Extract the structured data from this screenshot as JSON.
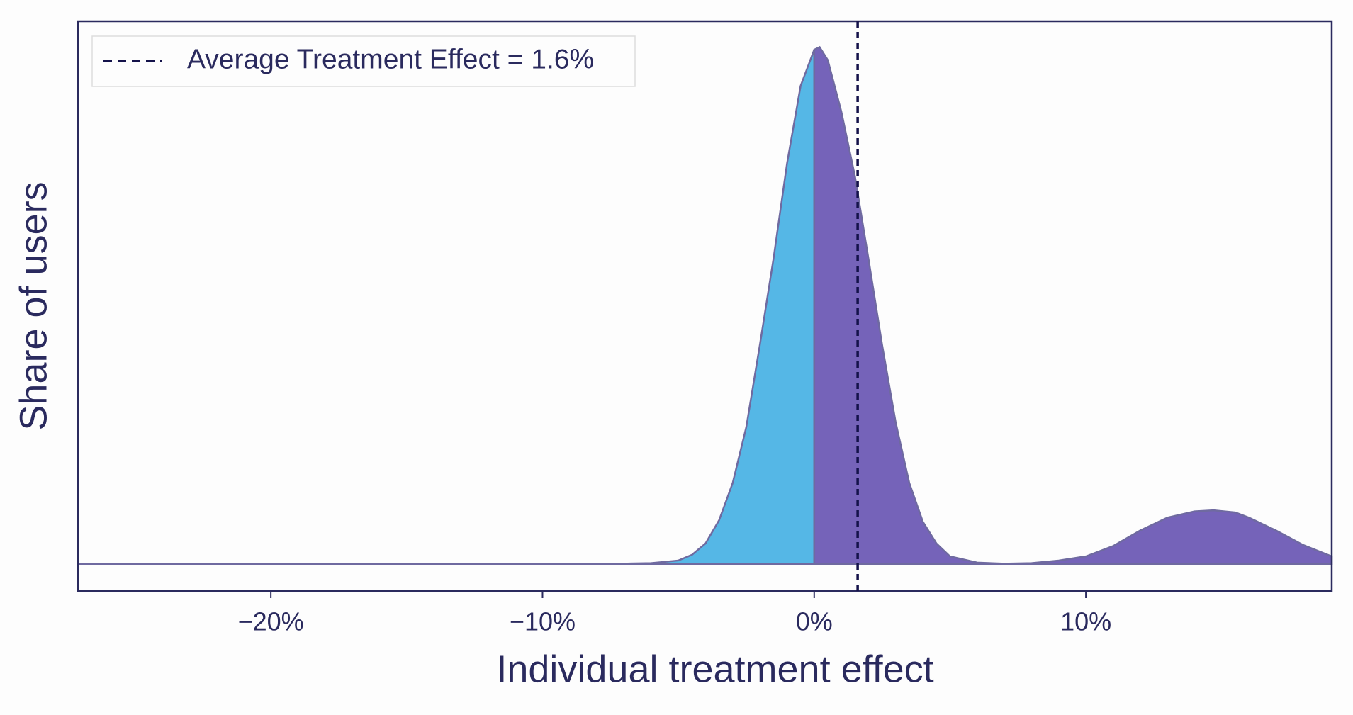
{
  "chart_data": {
    "type": "area",
    "x_label": "Individual treatment effect",
    "y_label": "Share of users",
    "xlim": [
      -27.1,
      19.05
    ],
    "ylim": [
      -0.052,
      1.05
    ],
    "xticks": [
      {
        "value": -20,
        "label": "−20%"
      },
      {
        "value": -10,
        "label": "−10%"
      },
      {
        "value": 0,
        "label": "0%"
      },
      {
        "value": 10,
        "label": "10%"
      }
    ],
    "series": [
      {
        "color": "#55b7e6",
        "x": [
          -27.1,
          -20,
          -10,
          -7,
          -6,
          -5,
          -4.5,
          -4,
          -3.5,
          -3,
          -2.5,
          -2,
          -1.5,
          -1,
          -0.5,
          0
        ],
        "values": [
          0,
          0,
          0,
          0.001,
          0.002,
          0.007,
          0.018,
          0.04,
          0.085,
          0.157,
          0.265,
          0.424,
          0.59,
          0.775,
          0.925,
          0.995
        ]
      },
      {
        "color": "#7563b9",
        "x": [
          0,
          0.2,
          0.5,
          1,
          1.5,
          2,
          2.5,
          3,
          3.5,
          4,
          4.5,
          5,
          6,
          7,
          8,
          9,
          10,
          11,
          12,
          13,
          14,
          14.7,
          15.5,
          16,
          17,
          18,
          19.05
        ],
        "values": [
          0.995,
          1.0,
          0.975,
          0.875,
          0.75,
          0.59,
          0.424,
          0.274,
          0.157,
          0.082,
          0.04,
          0.015,
          0.003,
          0.001,
          0.002,
          0.007,
          0.015,
          0.035,
          0.065,
          0.09,
          0.102,
          0.104,
          0.1,
          0.09,
          0.065,
          0.037,
          0.015
        ]
      }
    ],
    "vline": {
      "value": 1.6,
      "label": "Average Treatment Effect = 1.6%",
      "color": "#14124a"
    },
    "legend": "upper left"
  }
}
